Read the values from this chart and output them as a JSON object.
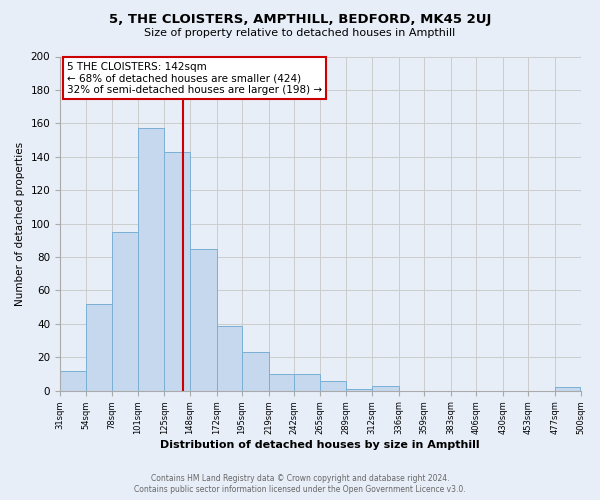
{
  "title": "5, THE CLOISTERS, AMPTHILL, BEDFORD, MK45 2UJ",
  "subtitle": "Size of property relative to detached houses in Ampthill",
  "xlabel": "Distribution of detached houses by size in Ampthill",
  "ylabel": "Number of detached properties",
  "footer_line1": "Contains HM Land Registry data © Crown copyright and database right 2024.",
  "footer_line2": "Contains public sector information licensed under the Open Government Licence v3.0.",
  "bar_edges": [
    31,
    54,
    78,
    101,
    125,
    148,
    172,
    195,
    219,
    242,
    265,
    289,
    312,
    336,
    359,
    383,
    406,
    430,
    453,
    477,
    500
  ],
  "bar_heights": [
    12,
    52,
    95,
    157,
    143,
    85,
    39,
    23,
    10,
    10,
    6,
    1,
    3,
    0,
    0,
    0,
    0,
    0,
    0,
    2
  ],
  "bar_color": "#c5d8ee",
  "bar_edge_color": "#7aafd4",
  "property_value": 142,
  "vline_color": "#cc0000",
  "annotation_title": "5 THE CLOISTERS: 142sqm",
  "annotation_line1": "← 68% of detached houses are smaller (424)",
  "annotation_line2": "32% of semi-detached houses are larger (198) →",
  "annotation_box_facecolor": "#ffffff",
  "annotation_box_edgecolor": "#cc0000",
  "ylim": [
    0,
    200
  ],
  "yticks": [
    0,
    20,
    40,
    60,
    80,
    100,
    120,
    140,
    160,
    180,
    200
  ],
  "grid_color": "#cccccc",
  "bg_color": "#e8eef8",
  "plot_bg_color": "#e8eef8",
  "title_fontsize": 9.5,
  "subtitle_fontsize": 8,
  "xlabel_fontsize": 8,
  "ylabel_fontsize": 7.5,
  "xtick_fontsize": 6,
  "ytick_fontsize": 7.5
}
